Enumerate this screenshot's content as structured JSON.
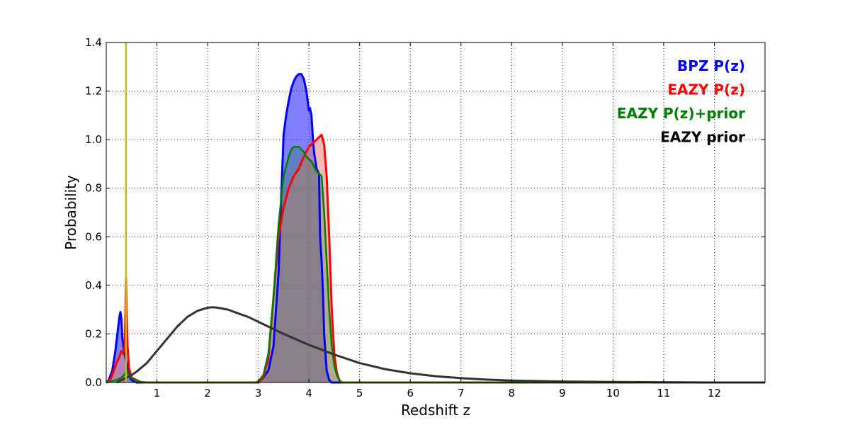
{
  "chart_data": {
    "type": "area",
    "xlabel": "Redshift z",
    "ylabel": "Probability",
    "xlim": [
      0,
      13
    ],
    "ylim": [
      0,
      1.4
    ],
    "x_ticks": [
      "1",
      "2",
      "3",
      "4",
      "5",
      "6",
      "7",
      "8",
      "9",
      "10",
      "11",
      "12"
    ],
    "y_ticks": [
      "0.0",
      "0.2",
      "0.4",
      "0.6",
      "0.8",
      "1.0",
      "1.2",
      "1.4"
    ],
    "grid": true,
    "legend_placement": "top-right",
    "reference_line": {
      "x": 0.39,
      "color": "#bfbf00"
    },
    "series": [
      {
        "name": "BPZ P(z)",
        "color": "#0000ff",
        "fill": "#0000ff",
        "fill_opacity": 0.5,
        "stroke_width": 3,
        "x": [
          0.0,
          0.05,
          0.12,
          0.18,
          0.22,
          0.26,
          0.28,
          0.3,
          0.32,
          0.36,
          0.4,
          0.45,
          0.5,
          0.6,
          0.8,
          1.0,
          2.0,
          3.0,
          3.1,
          3.2,
          3.3,
          3.4,
          3.45,
          3.5,
          3.55,
          3.6,
          3.65,
          3.7,
          3.75,
          3.8,
          3.85,
          3.9,
          3.95,
          4.0,
          4.02,
          4.05,
          4.08,
          4.1,
          4.15,
          4.2,
          4.22,
          4.25,
          4.28,
          4.3,
          4.35,
          4.4,
          4.45,
          5.0,
          12.0,
          13.0
        ],
        "y": [
          0.0,
          0.01,
          0.05,
          0.13,
          0.2,
          0.27,
          0.29,
          0.26,
          0.18,
          0.12,
          0.08,
          0.03,
          0.01,
          0.0,
          0.0,
          0.0,
          0.0,
          0.0,
          0.02,
          0.05,
          0.15,
          0.45,
          0.75,
          1.02,
          1.1,
          1.16,
          1.21,
          1.24,
          1.26,
          1.27,
          1.27,
          1.25,
          1.2,
          1.12,
          1.13,
          1.1,
          1.0,
          0.95,
          0.88,
          0.86,
          0.6,
          0.5,
          0.35,
          0.2,
          0.05,
          0.01,
          0.0,
          0.0,
          0.0,
          0.0
        ]
      },
      {
        "name": "EAZY P(z)",
        "color": "#ff0000",
        "fill": "#e88080",
        "fill_opacity": 0.55,
        "stroke_width": 3,
        "x": [
          0.0,
          0.05,
          0.1,
          0.15,
          0.2,
          0.25,
          0.28,
          0.3,
          0.33,
          0.36,
          0.37,
          0.38,
          0.39,
          0.4,
          0.42,
          0.45,
          0.5,
          0.6,
          0.7,
          1.0,
          2.0,
          3.0,
          3.1,
          3.2,
          3.3,
          3.4,
          3.5,
          3.6,
          3.7,
          3.8,
          3.9,
          4.0,
          4.1,
          4.2,
          4.25,
          4.3,
          4.35,
          4.4,
          4.45,
          4.5,
          4.55,
          4.6,
          4.65,
          5.0,
          13.0
        ],
        "y": [
          0.0,
          0.005,
          0.02,
          0.05,
          0.08,
          0.1,
          0.12,
          0.13,
          0.12,
          0.13,
          0.2,
          0.3,
          0.43,
          0.3,
          0.15,
          0.06,
          0.02,
          0.01,
          0.0,
          0.0,
          0.0,
          0.0,
          0.02,
          0.1,
          0.35,
          0.6,
          0.72,
          0.8,
          0.85,
          0.88,
          0.93,
          0.97,
          0.99,
          1.01,
          1.02,
          0.98,
          0.85,
          0.6,
          0.3,
          0.12,
          0.04,
          0.01,
          0.0,
          0.0,
          0.0
        ]
      },
      {
        "name": "EAZY P(z)+prior",
        "color": "#008000",
        "fill": "#008000",
        "fill_opacity": 0.25,
        "stroke_width": 2.5,
        "x": [
          0.0,
          0.1,
          0.2,
          0.3,
          0.35,
          0.38,
          0.4,
          0.42,
          0.45,
          0.5,
          0.6,
          0.8,
          1.0,
          2.0,
          2.95,
          3.0,
          3.1,
          3.2,
          3.3,
          3.4,
          3.5,
          3.55,
          3.6,
          3.65,
          3.7,
          3.75,
          3.8,
          3.85,
          3.9,
          3.95,
          4.0,
          4.05,
          4.1,
          4.15,
          4.2,
          4.25,
          4.3,
          4.35,
          4.4,
          4.45,
          4.5,
          4.55,
          4.6,
          4.65,
          5.0,
          13.0
        ],
        "y": [
          0.0,
          0.005,
          0.01,
          0.02,
          0.03,
          0.04,
          0.055,
          0.04,
          0.03,
          0.02,
          0.005,
          0.0,
          0.0,
          0.0,
          0.0,
          0.005,
          0.03,
          0.12,
          0.35,
          0.65,
          0.85,
          0.89,
          0.93,
          0.96,
          0.97,
          0.97,
          0.97,
          0.96,
          0.95,
          0.93,
          0.92,
          0.91,
          0.89,
          0.87,
          0.86,
          0.85,
          0.7,
          0.5,
          0.3,
          0.15,
          0.07,
          0.03,
          0.01,
          0.0,
          0.0,
          0.0
        ]
      },
      {
        "name": "EAZY prior",
        "color": "#333333",
        "fill": "none",
        "fill_opacity": 0,
        "stroke_width": 3,
        "x": [
          0.2,
          0.3,
          0.4,
          0.5,
          0.6,
          0.8,
          1.0,
          1.2,
          1.4,
          1.6,
          1.8,
          2.0,
          2.1,
          2.2,
          2.4,
          2.6,
          2.8,
          3.0,
          3.2,
          3.5,
          4.0,
          4.5,
          5.0,
          5.5,
          6.0,
          6.5,
          7.0,
          7.5,
          8.0,
          9.0,
          10.0,
          11.0,
          12.0,
          13.0
        ],
        "y": [
          0.0,
          0.01,
          0.02,
          0.03,
          0.045,
          0.08,
          0.13,
          0.18,
          0.23,
          0.27,
          0.295,
          0.308,
          0.31,
          0.308,
          0.3,
          0.285,
          0.27,
          0.25,
          0.23,
          0.2,
          0.155,
          0.115,
          0.08,
          0.055,
          0.038,
          0.026,
          0.018,
          0.012,
          0.008,
          0.004,
          0.002,
          0.001,
          0.0,
          0.0
        ]
      }
    ]
  }
}
